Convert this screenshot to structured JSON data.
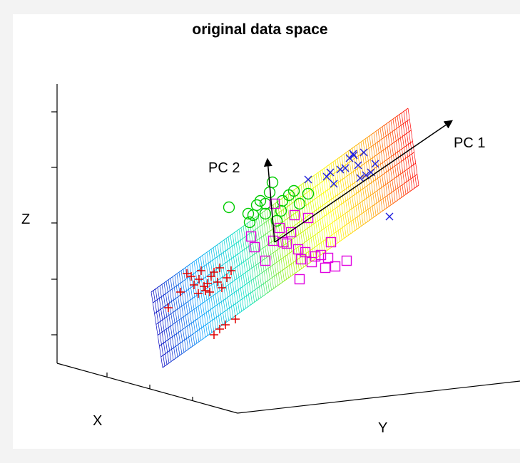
{
  "title": "original data space",
  "axes": {
    "x_label": "X",
    "y_label": "Y",
    "z_label": "Z"
  },
  "vectors": {
    "pc1_label": "PC 1",
    "pc2_label": "PC 2"
  },
  "legend": [],
  "colors": {
    "class_plus": "#e00000",
    "class_circle": "#00cc00",
    "class_square": "#e000e0",
    "class_x": "#2020dd",
    "plane_gradient": [
      "#0000c0",
      "#00a0ff",
      "#00e0c0",
      "#a0f000",
      "#ffff00",
      "#ffa000",
      "#ff0000"
    ]
  },
  "markers": {
    "plus": "plus-marker",
    "circle": "circle-marker",
    "square": "square-marker",
    "cross": "x-marker"
  }
}
